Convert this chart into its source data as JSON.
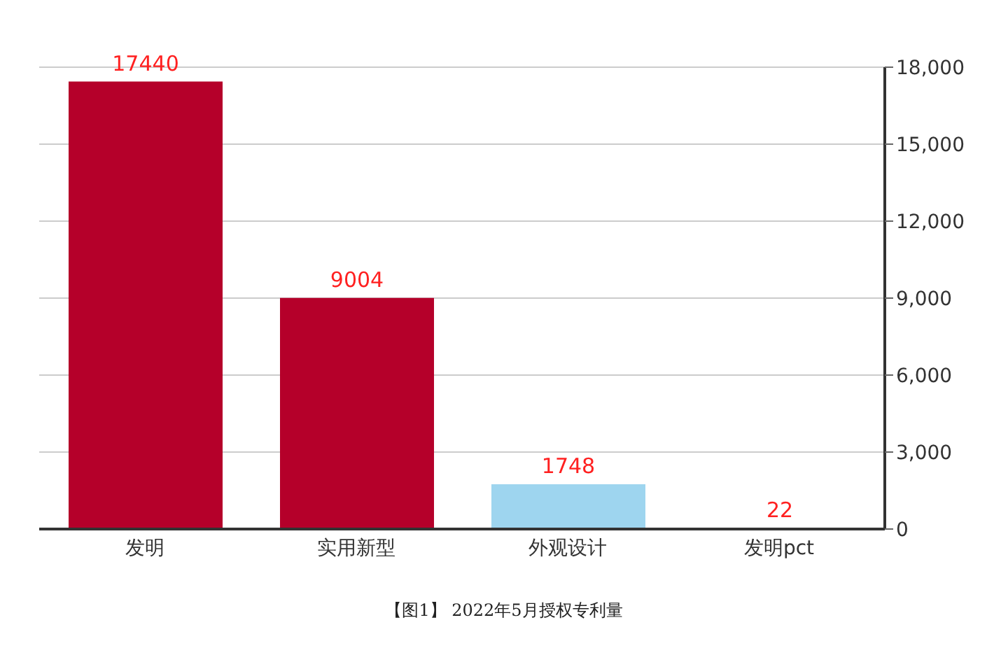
{
  "chart_data": {
    "type": "bar",
    "categories": [
      "发明",
      "实用新型",
      "外观设计",
      "发明pct"
    ],
    "values": [
      17440,
      9004,
      1748,
      22
    ],
    "colors": [
      "#b5002a",
      "#b5002a",
      "#9ed5ef",
      "#2e2e8a"
    ],
    "ylim": [
      0,
      18000
    ],
    "yticks": [
      0,
      {
        "value": 3000,
        "label": "3,000"
      },
      {
        "value": 6000,
        "label": "6,000"
      },
      {
        "value": 9000,
        "label": "9,000"
      },
      {
        "value": 12000,
        "label": "12,000"
      },
      {
        "value": 15000,
        "label": "15,000"
      },
      {
        "value": 18000,
        "label": "18,000"
      }
    ],
    "grid": "y",
    "data_labels": true,
    "annotations": [
      "【图1】 2022年5月授权专利量"
    ]
  }
}
